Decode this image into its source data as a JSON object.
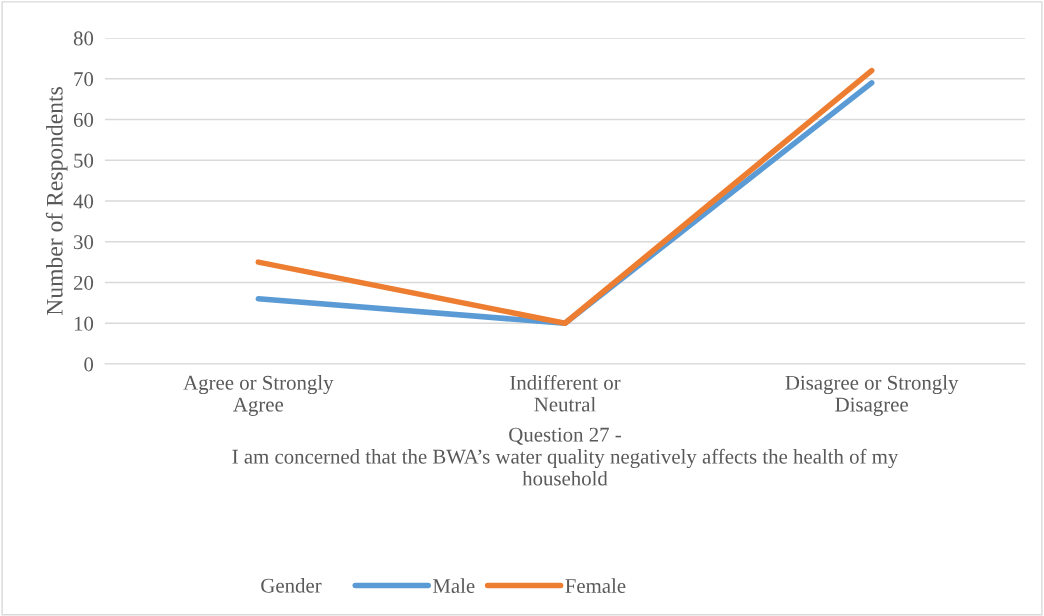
{
  "chart_data": {
    "type": "line",
    "xlabel": "Question 27 -\nI am concerned that the BWA’s water quality negatively affects the health of my\nhousehold",
    "ylabel": "Number of Respondents",
    "legend_title": "Gender",
    "categories": [
      "Agree or Strongly Agree",
      "Indifferent or Neutral",
      "Disagree or Strongly Disagree"
    ],
    "series": [
      {
        "name": "Male",
        "color": "#5b9bd5",
        "values": [
          16,
          10,
          69
        ]
      },
      {
        "name": "Female",
        "color": "#ed7d31",
        "values": [
          25,
          10,
          72
        ]
      }
    ],
    "ylim": [
      0,
      80
    ],
    "yticks": [
      0,
      10,
      20,
      30,
      40,
      50,
      60,
      70,
      80
    ],
    "grid": "y",
    "legend": "bottom",
    "marker": "none",
    "line_style": "solid"
  }
}
